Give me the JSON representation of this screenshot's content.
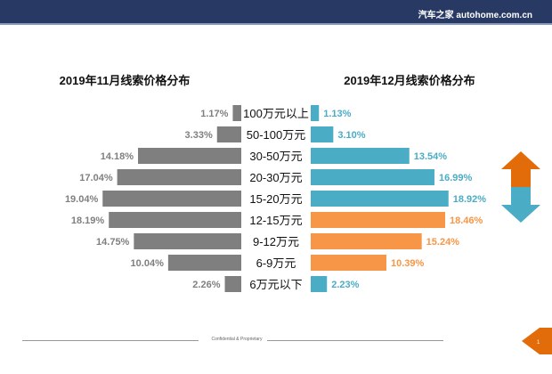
{
  "header": {
    "brand": "汽车之家 autohome.com.cn"
  },
  "footer": {
    "text": "Confidential & Proprietary",
    "page": "1"
  },
  "colors": {
    "left": "#7f7f7f",
    "right_default": "#4bacc6",
    "right_highlight": "#f79646",
    "header": "#283a63",
    "arrow_up": "#e36c0a",
    "arrow_down": "#4bacc6"
  },
  "chart_data": {
    "type": "bar",
    "layout": "butterfly",
    "categories": [
      "100万元以上",
      "50-100万元",
      "30-50万元",
      "20-30万元",
      "15-20万元",
      "12-15万元",
      "9-12万元",
      "6-9万元",
      "6万元以下"
    ],
    "series": [
      {
        "name": "2019年11月线索价格分布",
        "values": [
          1.17,
          3.33,
          14.18,
          17.04,
          19.04,
          18.19,
          14.75,
          10.04,
          2.26
        ],
        "labels": [
          "1.17%",
          "3.33%",
          "14.18%",
          "17.04%",
          "19.04%",
          "18.19%",
          "14.75%",
          "10.04%",
          "2.26%"
        ]
      },
      {
        "name": "2019年12月线索价格分布",
        "values": [
          1.13,
          3.1,
          13.54,
          16.99,
          18.92,
          18.46,
          15.24,
          10.39,
          2.23
        ],
        "labels": [
          "1.13%",
          "3.10%",
          "13.54%",
          "16.99%",
          "18.92%",
          "18.46%",
          "15.24%",
          "10.39%",
          "2.23%"
        ],
        "highlighted": [
          "12-15万元",
          "9-12万元",
          "6-9万元"
        ]
      }
    ],
    "unit": "%",
    "grid": false
  }
}
